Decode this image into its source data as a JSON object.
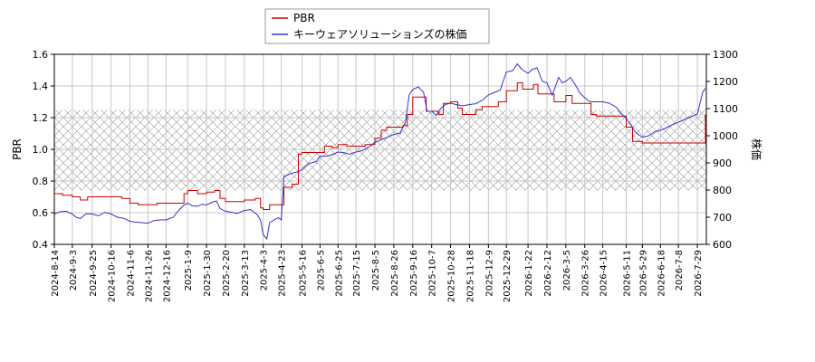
{
  "chart_data": {
    "type": "line",
    "title": "",
    "xlabel": "",
    "ylabel_left": "PBR",
    "ylabel_right": "株価",
    "ylim_left": [
      0.4,
      1.6
    ],
    "ylim_right": [
      600,
      1300
    ],
    "yticks_left": [
      "0.4",
      "0.6",
      "0.8",
      "1.0",
      "1.2",
      "1.4",
      "1.6"
    ],
    "yticks_right": [
      "600",
      "700",
      "800",
      "900",
      "1000",
      "1100",
      "1200",
      "1300"
    ],
    "x_range": [
      "2024-08-14",
      "2026-08-08"
    ],
    "x_ticks": [
      "2024-8-14",
      "2024-9-3",
      "2024-9-25",
      "2024-10-16",
      "2024-11-6",
      "2024-11-26",
      "2024-12-16",
      "2025-1-9",
      "2025-1-30",
      "2025-2-20",
      "2025-3-13",
      "2025-4-3",
      "2025-4-23",
      "2025-5-16",
      "2025-6-5",
      "2025-6-25",
      "2025-7-15",
      "2025-8-5",
      "2025-8-26",
      "2025-9-16",
      "2025-10-7",
      "2025-10-28",
      "2025-11-18",
      "2025-12-9",
      "2025-12-29",
      "2026-1-22",
      "2026-2-12",
      "2026-3-5",
      "2026-3-26",
      "2026-4-15",
      "2026-5-11",
      "2026-5-29",
      "2026-6-18",
      "2026-7-8",
      "2026-7-29"
    ],
    "grid": true,
    "legend_placement": "top-center",
    "shaded_band_left": [
      0.74,
      1.25
    ],
    "series": [
      {
        "name": "PBR",
        "axis": "left",
        "color": "#cc0000",
        "points": [
          [
            "2024-08-14",
            0.72
          ],
          [
            "2024-08-23",
            0.71
          ],
          [
            "2024-09-03",
            0.7
          ],
          [
            "2024-09-12",
            0.68
          ],
          [
            "2024-09-20",
            0.7
          ],
          [
            "2024-09-25",
            0.7
          ],
          [
            "2024-10-05",
            0.7
          ],
          [
            "2024-10-16",
            0.7
          ],
          [
            "2024-10-28",
            0.69
          ],
          [
            "2024-11-06",
            0.66
          ],
          [
            "2024-11-15",
            0.65
          ],
          [
            "2024-11-26",
            0.65
          ],
          [
            "2024-12-06",
            0.66
          ],
          [
            "2024-12-16",
            0.66
          ],
          [
            "2024-12-28",
            0.66
          ],
          [
            "2025-01-05",
            0.72
          ],
          [
            "2025-01-09",
            0.74
          ],
          [
            "2025-01-20",
            0.72
          ],
          [
            "2025-01-30",
            0.73
          ],
          [
            "2025-02-08",
            0.74
          ],
          [
            "2025-02-14",
            0.69
          ],
          [
            "2025-02-20",
            0.67
          ],
          [
            "2025-03-05",
            0.67
          ],
          [
            "2025-03-13",
            0.68
          ],
          [
            "2025-03-25",
            0.69
          ],
          [
            "2025-03-31",
            0.63
          ],
          [
            "2025-04-03",
            0.62
          ],
          [
            "2025-04-10",
            0.65
          ],
          [
            "2025-04-23",
            0.65
          ],
          [
            "2025-04-26",
            0.76
          ],
          [
            "2025-05-05",
            0.78
          ],
          [
            "2025-05-12",
            0.97
          ],
          [
            "2025-05-16",
            0.98
          ],
          [
            "2025-05-26",
            0.98
          ],
          [
            "2025-06-05",
            0.98
          ],
          [
            "2025-06-10",
            1.02
          ],
          [
            "2025-06-18",
            1.01
          ],
          [
            "2025-06-25",
            1.03
          ],
          [
            "2025-07-05",
            1.02
          ],
          [
            "2025-07-15",
            1.02
          ],
          [
            "2025-07-25",
            1.03
          ],
          [
            "2025-08-05",
            1.07
          ],
          [
            "2025-08-12",
            1.12
          ],
          [
            "2025-08-18",
            1.14
          ],
          [
            "2025-08-26",
            1.14
          ],
          [
            "2025-09-05",
            1.15
          ],
          [
            "2025-09-10",
            1.22
          ],
          [
            "2025-09-16",
            1.33
          ],
          [
            "2025-09-26",
            1.33
          ],
          [
            "2025-10-01",
            1.24
          ],
          [
            "2025-10-07",
            1.24
          ],
          [
            "2025-10-15",
            1.22
          ],
          [
            "2025-10-20",
            1.29
          ],
          [
            "2025-10-28",
            1.3
          ],
          [
            "2025-11-05",
            1.26
          ],
          [
            "2025-11-10",
            1.22
          ],
          [
            "2025-11-18",
            1.22
          ],
          [
            "2025-11-25",
            1.25
          ],
          [
            "2025-12-02",
            1.27
          ],
          [
            "2025-12-09",
            1.27
          ],
          [
            "2025-12-20",
            1.3
          ],
          [
            "2025-12-29",
            1.37
          ],
          [
            "2026-01-05",
            1.37
          ],
          [
            "2026-01-10",
            1.42
          ],
          [
            "2026-01-16",
            1.38
          ],
          [
            "2026-01-22",
            1.38
          ],
          [
            "2026-01-28",
            1.41
          ],
          [
            "2026-02-02",
            1.35
          ],
          [
            "2026-02-12",
            1.35
          ],
          [
            "2026-02-20",
            1.3
          ],
          [
            "2026-02-28",
            1.3
          ],
          [
            "2026-03-05",
            1.34
          ],
          [
            "2026-03-12",
            1.29
          ],
          [
            "2026-03-26",
            1.29
          ],
          [
            "2026-04-02",
            1.22
          ],
          [
            "2026-04-08",
            1.21
          ],
          [
            "2026-04-15",
            1.21
          ],
          [
            "2026-04-25",
            1.21
          ],
          [
            "2026-05-05",
            1.21
          ],
          [
            "2026-05-11",
            1.14
          ],
          [
            "2026-05-18",
            1.05
          ],
          [
            "2026-05-29",
            1.04
          ],
          [
            "2026-06-18",
            1.04
          ],
          [
            "2026-07-08",
            1.04
          ],
          [
            "2026-07-29",
            1.04
          ],
          [
            "2026-08-06",
            1.04
          ],
          [
            "2026-08-07",
            1.22
          ]
        ]
      },
      {
        "name": "キーウェアソリューションズの株価",
        "axis": "right",
        "color": "#3333cc",
        "points": [
          [
            "2024-08-14",
            712
          ],
          [
            "2024-08-20",
            720
          ],
          [
            "2024-08-27",
            722
          ],
          [
            "2024-09-03",
            712
          ],
          [
            "2024-09-07",
            700
          ],
          [
            "2024-09-12",
            695
          ],
          [
            "2024-09-18",
            712
          ],
          [
            "2024-09-25",
            712
          ],
          [
            "2024-10-02",
            705
          ],
          [
            "2024-10-09",
            718
          ],
          [
            "2024-10-16",
            712
          ],
          [
            "2024-10-23",
            700
          ],
          [
            "2024-10-30",
            696
          ],
          [
            "2024-11-06",
            685
          ],
          [
            "2024-11-12",
            682
          ],
          [
            "2024-11-19",
            680
          ],
          [
            "2024-11-26",
            678
          ],
          [
            "2024-12-03",
            688
          ],
          [
            "2024-12-10",
            690
          ],
          [
            "2024-12-16",
            690
          ],
          [
            "2024-12-24",
            700
          ],
          [
            "2024-12-30",
            725
          ],
          [
            "2025-01-05",
            745
          ],
          [
            "2025-01-09",
            752
          ],
          [
            "2025-01-14",
            742
          ],
          [
            "2025-01-20",
            740
          ],
          [
            "2025-01-25",
            748
          ],
          [
            "2025-01-30",
            745
          ],
          [
            "2025-02-05",
            755
          ],
          [
            "2025-02-10",
            760
          ],
          [
            "2025-02-14",
            732
          ],
          [
            "2025-02-20",
            722
          ],
          [
            "2025-02-27",
            718
          ],
          [
            "2025-03-05",
            714
          ],
          [
            "2025-03-13",
            725
          ],
          [
            "2025-03-20",
            728
          ],
          [
            "2025-03-27",
            710
          ],
          [
            "2025-03-31",
            690
          ],
          [
            "2025-04-03",
            635
          ],
          [
            "2025-04-07",
            620
          ],
          [
            "2025-04-10",
            680
          ],
          [
            "2025-04-16",
            692
          ],
          [
            "2025-04-20",
            698
          ],
          [
            "2025-04-23",
            690
          ],
          [
            "2025-04-26",
            850
          ],
          [
            "2025-05-05",
            862
          ],
          [
            "2025-05-12",
            868
          ],
          [
            "2025-05-16",
            875
          ],
          [
            "2025-05-24",
            898
          ],
          [
            "2025-06-01",
            905
          ],
          [
            "2025-06-05",
            925
          ],
          [
            "2025-06-12",
            925
          ],
          [
            "2025-06-18",
            930
          ],
          [
            "2025-06-25",
            940
          ],
          [
            "2025-07-01",
            938
          ],
          [
            "2025-07-08",
            932
          ],
          [
            "2025-07-15",
            940
          ],
          [
            "2025-07-22",
            945
          ],
          [
            "2025-07-29",
            958
          ],
          [
            "2025-08-05",
            975
          ],
          [
            "2025-08-12",
            985
          ],
          [
            "2025-08-19",
            995
          ],
          [
            "2025-08-26",
            1005
          ],
          [
            "2025-09-02",
            1010
          ],
          [
            "2025-09-08",
            1050
          ],
          [
            "2025-09-12",
            1150
          ],
          [
            "2025-09-16",
            1170
          ],
          [
            "2025-09-22",
            1180
          ],
          [
            "2025-09-28",
            1160
          ],
          [
            "2025-10-02",
            1090
          ],
          [
            "2025-10-07",
            1090
          ],
          [
            "2025-10-12",
            1075
          ],
          [
            "2025-10-17",
            1100
          ],
          [
            "2025-10-22",
            1115
          ],
          [
            "2025-10-28",
            1120
          ],
          [
            "2025-11-03",
            1115
          ],
          [
            "2025-11-10",
            1110
          ],
          [
            "2025-11-18",
            1115
          ],
          [
            "2025-11-25",
            1118
          ],
          [
            "2025-12-02",
            1130
          ],
          [
            "2025-12-09",
            1150
          ],
          [
            "2025-12-16",
            1160
          ],
          [
            "2025-12-22",
            1168
          ],
          [
            "2025-12-29",
            1235
          ],
          [
            "2026-01-05",
            1240
          ],
          [
            "2026-01-10",
            1265
          ],
          [
            "2026-01-15",
            1245
          ],
          [
            "2026-01-22",
            1230
          ],
          [
            "2026-01-27",
            1245
          ],
          [
            "2026-02-01",
            1250
          ],
          [
            "2026-02-07",
            1200
          ],
          [
            "2026-02-12",
            1195
          ],
          [
            "2026-02-18",
            1150
          ],
          [
            "2026-02-25",
            1215
          ],
          [
            "2026-03-01",
            1195
          ],
          [
            "2026-03-05",
            1200
          ],
          [
            "2026-03-10",
            1215
          ],
          [
            "2026-03-16",
            1185
          ],
          [
            "2026-03-20",
            1160
          ],
          [
            "2026-03-26",
            1140
          ],
          [
            "2026-04-01",
            1125
          ],
          [
            "2026-04-08",
            1125
          ],
          [
            "2026-04-15",
            1125
          ],
          [
            "2026-04-22",
            1120
          ],
          [
            "2026-04-30",
            1105
          ],
          [
            "2026-05-06",
            1080
          ],
          [
            "2026-05-11",
            1065
          ],
          [
            "2026-05-15",
            1045
          ],
          [
            "2026-05-22",
            1010
          ],
          [
            "2026-05-29",
            995
          ],
          [
            "2026-06-05",
            1000
          ],
          [
            "2026-06-12",
            1015
          ],
          [
            "2026-06-18",
            1020
          ],
          [
            "2026-06-25",
            1030
          ],
          [
            "2026-07-01",
            1040
          ],
          [
            "2026-07-08",
            1050
          ],
          [
            "2026-07-15",
            1060
          ],
          [
            "2026-07-22",
            1070
          ],
          [
            "2026-07-29",
            1080
          ],
          [
            "2026-08-04",
            1160
          ],
          [
            "2026-08-07",
            1175
          ]
        ]
      }
    ]
  }
}
